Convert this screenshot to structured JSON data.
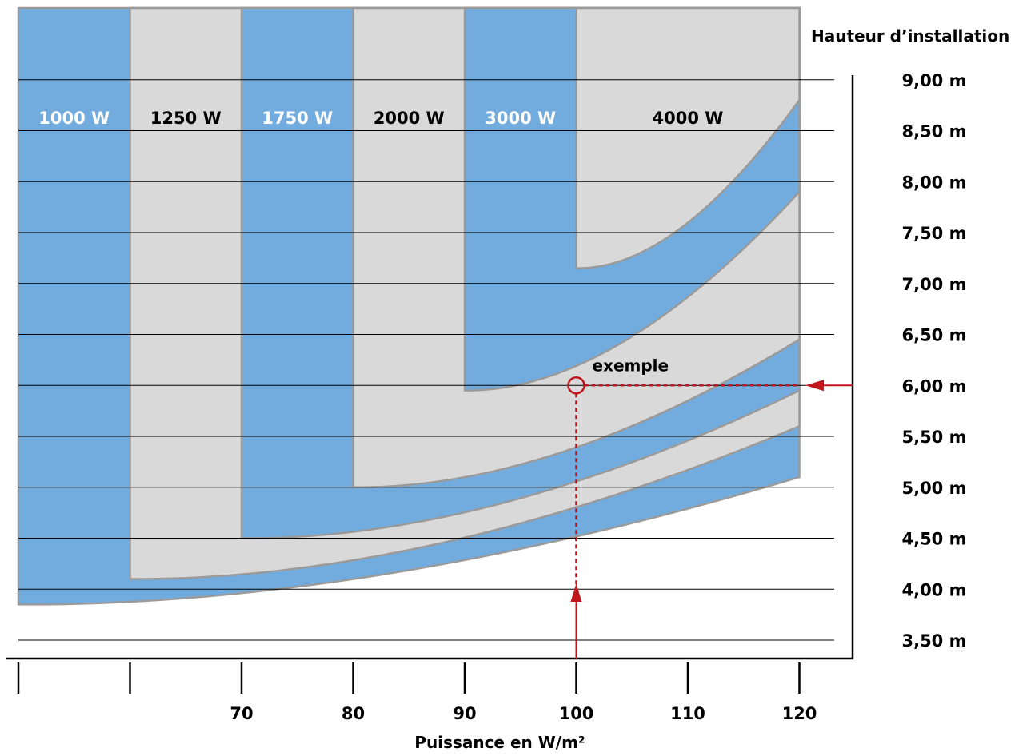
{
  "chart_data": {
    "type": "area",
    "title": "",
    "xlabel": "Puissance en W/m²",
    "ylabel": "Hauteur d’installation",
    "x_ticks": [
      "70",
      "80",
      "90",
      "100",
      "110",
      "120"
    ],
    "y_ticks": [
      "3,50 m",
      "4,00 m",
      "4,50 m",
      "5,00 m",
      "5,50 m",
      "6,00 m",
      "6,50 m",
      "7,00 m",
      "7,50 m",
      "8,00 m",
      "8,50 m",
      "9,00 m"
    ],
    "ylim": [
      3.25,
      9.5
    ],
    "xlim": [
      50,
      120
    ],
    "grid": "horizontal",
    "colors": {
      "blue_band": "#72acde",
      "grey_band": "#d9d9d9",
      "band_edge": "#9a9a9a",
      "marker": "#c0161e",
      "axis": "#000000"
    },
    "series": [
      {
        "name": "1000 W",
        "x_start": 50,
        "floor_at_x_start": 3.85,
        "floor_at_120": 5.1
      },
      {
        "name": "1250 W",
        "x_start": 60,
        "floor_at_x_start": 4.1,
        "floor_at_120": 5.6
      },
      {
        "name": "1750 W",
        "x_start": 70,
        "floor_at_x_start": 4.5,
        "floor_at_120": 5.95
      },
      {
        "name": "2000 W",
        "x_start": 80,
        "floor_at_x_start": 5.0,
        "floor_at_120": 6.45
      },
      {
        "name": "3000 W",
        "x_start": 90,
        "floor_at_x_start": 5.95,
        "floor_at_120": 7.9
      },
      {
        "name": "4000 W",
        "x_start": 100,
        "floor_at_x_start": 7.15,
        "floor_at_120": 8.8
      }
    ],
    "example": {
      "label": "exemple",
      "x": 100,
      "y": 6.0
    }
  }
}
